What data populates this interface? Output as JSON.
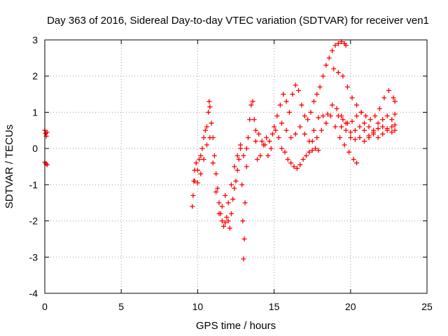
{
  "chart_data": {
    "type": "scatter",
    "title": "Day 363 of 2016, Sidereal Day-to-day VTEC variation (SDTVAR) for receiver ven1",
    "xlabel": "GPS time / hours",
    "ylabel": "SDTVAR / TECUs",
    "xlim": [
      0,
      25
    ],
    "ylim": [
      -4,
      3
    ],
    "xticks": [
      0,
      5,
      10,
      15,
      20,
      25
    ],
    "yticks": [
      -4,
      -3,
      -2,
      -1,
      0,
      1,
      2,
      3
    ],
    "grid": true,
    "marker": "+",
    "series_color": "#ff0000",
    "series": [
      {
        "points": [
          [
            0.0,
            0.5
          ],
          [
            0.05,
            0.42
          ],
          [
            0.1,
            0.34
          ],
          [
            0.15,
            0.45
          ],
          [
            0.0,
            -0.38
          ],
          [
            0.08,
            -0.42
          ],
          [
            0.15,
            -0.45
          ],
          [
            9.65,
            -1.6
          ],
          [
            9.7,
            -1.3
          ],
          [
            9.75,
            -0.9
          ],
          [
            9.8,
            -0.6
          ],
          [
            9.9,
            -0.4
          ],
          [
            10.0,
            -0.6
          ],
          [
            10.1,
            -0.3
          ],
          [
            10.2,
            -0.2
          ],
          [
            10.3,
            0.0
          ],
          [
            10.4,
            0.3
          ],
          [
            10.5,
            0.5
          ],
          [
            10.6,
            0.6
          ],
          [
            10.7,
            1.0
          ],
          [
            10.75,
            1.3
          ],
          [
            10.8,
            1.15
          ],
          [
            10.9,
            0.7
          ],
          [
            11.0,
            0.3
          ],
          [
            11.1,
            -0.2
          ],
          [
            11.2,
            -0.7
          ],
          [
            11.3,
            -1.1
          ],
          [
            11.4,
            -1.5
          ],
          [
            11.5,
            -1.8
          ],
          [
            11.6,
            -2.0
          ],
          [
            11.7,
            -2.15
          ],
          [
            11.8,
            -2.05
          ],
          [
            11.9,
            -1.9
          ],
          [
            12.0,
            -2.0
          ],
          [
            12.1,
            -2.2
          ],
          [
            12.2,
            -1.8
          ],
          [
            12.3,
            -1.4
          ],
          [
            12.4,
            -1.1
          ],
          [
            12.5,
            -0.9
          ],
          [
            12.6,
            -0.6
          ],
          [
            12.7,
            -0.3
          ],
          [
            12.8,
            0.0
          ],
          [
            12.9,
            -1.0
          ],
          [
            12.95,
            -2.0
          ],
          [
            13.0,
            -3.05
          ],
          [
            13.05,
            -2.5
          ],
          [
            13.1,
            -1.5
          ],
          [
            13.2,
            -0.5
          ],
          [
            13.3,
            0.3
          ],
          [
            13.4,
            0.8
          ],
          [
            13.5,
            1.2
          ],
          [
            13.6,
            1.3
          ],
          [
            13.7,
            0.8
          ],
          [
            13.8,
            0.5
          ],
          [
            9.8,
            -0.9
          ],
          [
            10.0,
            -0.95
          ],
          [
            10.2,
            -0.7
          ],
          [
            10.4,
            -0.3
          ],
          [
            10.6,
            0.1
          ],
          [
            10.8,
            0.3
          ],
          [
            11.0,
            -0.4
          ],
          [
            11.2,
            -1.2
          ],
          [
            11.4,
            -1.8
          ],
          [
            11.6,
            -1.6
          ],
          [
            11.8,
            -1.3
          ],
          [
            12.0,
            -1.5
          ],
          [
            12.2,
            -1.0
          ],
          [
            12.4,
            -0.5
          ],
          [
            12.6,
            -0.2
          ],
          [
            12.8,
            0.1
          ],
          [
            13.0,
            -0.2
          ],
          [
            13.2,
            0.0
          ],
          [
            13.8,
            0.2
          ],
          [
            14.0,
            0.4
          ],
          [
            14.2,
            0.2
          ],
          [
            14.4,
            0.1
          ],
          [
            14.6,
            -0.2
          ],
          [
            14.8,
            0.0
          ],
          [
            15.0,
            0.6
          ],
          [
            15.2,
            0.9
          ],
          [
            15.4,
            1.2
          ],
          [
            15.6,
            1.5
          ],
          [
            15.8,
            1.3
          ],
          [
            16.0,
            1.0
          ],
          [
            16.2,
            1.5
          ],
          [
            16.4,
            1.75
          ],
          [
            16.6,
            1.6
          ],
          [
            16.8,
            1.2
          ],
          [
            17.0,
            0.9
          ],
          [
            17.2,
            0.8
          ],
          [
            17.4,
            1.0
          ],
          [
            17.6,
            1.3
          ],
          [
            17.8,
            1.5
          ],
          [
            18.0,
            1.7
          ],
          [
            18.2,
            2.0
          ],
          [
            18.4,
            2.3
          ],
          [
            18.6,
            2.5
          ],
          [
            18.8,
            2.7
          ],
          [
            19.0,
            2.85
          ],
          [
            19.2,
            2.9
          ],
          [
            19.4,
            2.95
          ],
          [
            19.6,
            2.9
          ],
          [
            19.7,
            2.85
          ],
          [
            13.9,
            -0.3
          ],
          [
            14.1,
            -0.2
          ],
          [
            14.3,
            0.1
          ],
          [
            14.5,
            0.3
          ],
          [
            14.7,
            0.2
          ],
          [
            14.9,
            0.4
          ],
          [
            15.1,
            0.5
          ],
          [
            15.3,
            0.3
          ],
          [
            15.5,
            0.0
          ],
          [
            15.7,
            -0.1
          ],
          [
            15.9,
            -0.3
          ],
          [
            16.1,
            -0.4
          ],
          [
            16.3,
            -0.5
          ],
          [
            16.5,
            -0.55
          ],
          [
            16.7,
            -0.45
          ],
          [
            16.9,
            -0.3
          ],
          [
            17.1,
            -0.2
          ],
          [
            17.3,
            -0.1
          ],
          [
            17.5,
            -0.05
          ],
          [
            17.7,
            0.0
          ],
          [
            17.9,
            -0.05
          ],
          [
            15.5,
            0.7
          ],
          [
            15.8,
            0.5
          ],
          [
            16.1,
            0.3
          ],
          [
            16.4,
            0.4
          ],
          [
            16.7,
            0.6
          ],
          [
            17.0,
            0.4
          ],
          [
            17.3,
            0.2
          ],
          [
            17.6,
            0.5
          ],
          [
            17.9,
            0.85
          ],
          [
            18.2,
            0.9
          ],
          [
            18.5,
            0.95
          ],
          [
            18.8,
            1.2
          ],
          [
            19.1,
            1.1
          ],
          [
            19.4,
            0.9
          ],
          [
            19.7,
            0.7
          ],
          [
            17.5,
            0.2
          ],
          [
            17.8,
            0.3
          ],
          [
            18.1,
            0.5
          ],
          [
            18.4,
            0.7
          ],
          [
            18.7,
            0.9
          ],
          [
            19.0,
            0.6
          ],
          [
            19.3,
            0.3
          ],
          [
            19.6,
            0.1
          ],
          [
            19.9,
            -0.1
          ],
          [
            20.2,
            -0.3
          ],
          [
            20.4,
            -0.4
          ],
          [
            18.9,
            2.2
          ],
          [
            19.2,
            2.1
          ],
          [
            19.5,
            2.0
          ],
          [
            19.8,
            1.7
          ],
          [
            20.1,
            1.4
          ],
          [
            20.4,
            1.2
          ],
          [
            20.7,
            1.0
          ],
          [
            21.0,
            0.9
          ],
          [
            21.3,
            0.8
          ],
          [
            21.6,
            0.9
          ],
          [
            21.9,
            1.1
          ],
          [
            22.2,
            1.4
          ],
          [
            22.5,
            1.6
          ],
          [
            22.8,
            1.4
          ],
          [
            22.9,
            1.3
          ],
          [
            19.2,
            0.9
          ],
          [
            19.5,
            0.8
          ],
          [
            19.8,
            0.7
          ],
          [
            20.1,
            0.75
          ],
          [
            20.4,
            0.9
          ],
          [
            20.7,
            1.0
          ],
          [
            20.9,
            0.7
          ],
          [
            21.2,
            0.6
          ],
          [
            21.5,
            0.5
          ],
          [
            21.8,
            0.7
          ],
          [
            22.1,
            0.8
          ],
          [
            22.4,
            0.9
          ],
          [
            22.7,
            0.8
          ],
          [
            22.9,
            0.95
          ],
          [
            19.4,
            0.6
          ],
          [
            19.7,
            0.5
          ],
          [
            20.0,
            0.45
          ],
          [
            20.3,
            0.5
          ],
          [
            20.6,
            0.6
          ],
          [
            20.9,
            0.5
          ],
          [
            21.2,
            0.3
          ],
          [
            21.5,
            0.4
          ],
          [
            21.8,
            0.3
          ],
          [
            22.1,
            0.4
          ],
          [
            22.4,
            0.5
          ],
          [
            22.7,
            0.45
          ],
          [
            22.9,
            0.5
          ],
          [
            20.0,
            0.3
          ],
          [
            20.3,
            0.25
          ],
          [
            20.6,
            0.3
          ],
          [
            20.9,
            0.2
          ],
          [
            21.2,
            0.35
          ],
          [
            21.5,
            0.45
          ],
          [
            21.8,
            0.55
          ],
          [
            22.1,
            0.6
          ],
          [
            22.4,
            0.55
          ],
          [
            22.7,
            0.6
          ],
          [
            22.9,
            0.65
          ]
        ]
      }
    ],
    "x_tick_labels": [
      "0",
      "5",
      "10",
      "15",
      "20",
      "25"
    ],
    "y_tick_labels": [
      "-4",
      "-3",
      "-2",
      "-1",
      "0",
      "1",
      "2",
      "3"
    ]
  }
}
